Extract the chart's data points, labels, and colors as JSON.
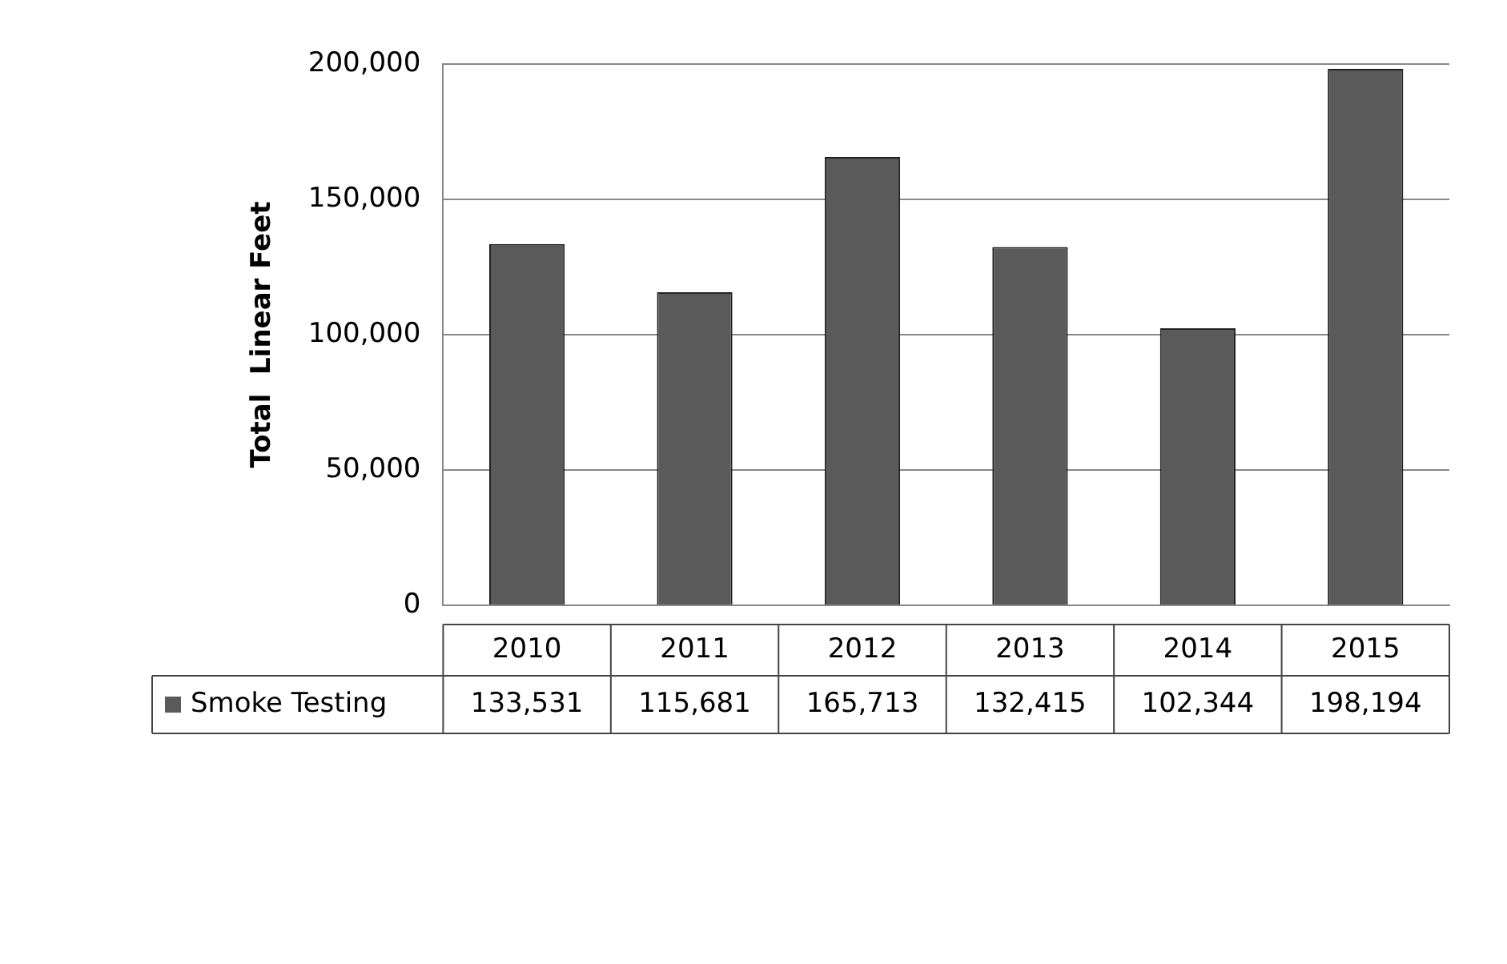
{
  "chart_data": {
    "type": "bar",
    "ylabel": "Total  Linear Feet",
    "categories": [
      "2010",
      "2011",
      "2012",
      "2013",
      "2014",
      "2015"
    ],
    "series": [
      {
        "name": "Smoke Testing",
        "color": "#5a5a5a",
        "values": [
          133531,
          115681,
          165713,
          132415,
          102344,
          198194
        ],
        "value_labels": [
          "133,531",
          "115,681",
          "165,713",
          "132,415",
          "102,344",
          "198,194"
        ]
      }
    ],
    "ylim": [
      0,
      200000
    ],
    "yticks": [
      0,
      {
        "value": 50000,
        "label": "50,000"
      },
      {
        "value": 100000,
        "label": "100,000"
      },
      {
        "value": 150000,
        "label": "150,000"
      },
      {
        "value": 200000,
        "label": "200,000"
      }
    ],
    "grid": "y"
  }
}
